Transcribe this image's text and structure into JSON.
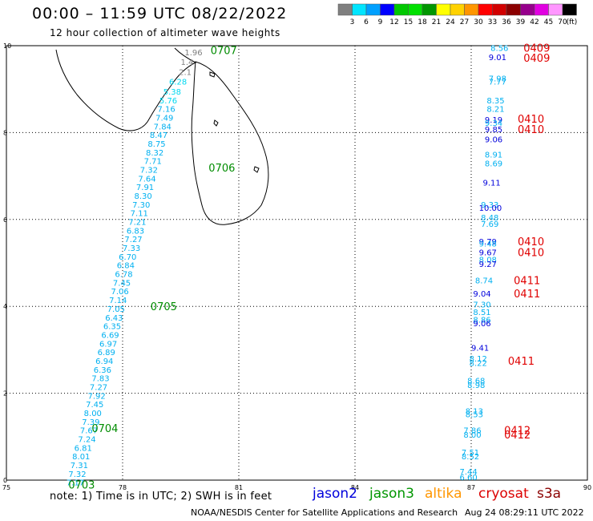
{
  "header": {
    "title": "00:00 – 11:59 UTC 08/22/2022",
    "subtitle": "12 hour collection of altimeter wave heights"
  },
  "legend": {
    "unit": "(ft)",
    "bins": [
      {
        "label": "3",
        "color": "#7f7f7f"
      },
      {
        "label": "6",
        "color": "#00e5ff"
      },
      {
        "label": "9",
        "color": "#00a0ff"
      },
      {
        "label": "12",
        "color": "#0000ff"
      },
      {
        "label": "15",
        "color": "#00c800"
      },
      {
        "label": "18",
        "color": "#00e000"
      },
      {
        "label": "21",
        "color": "#009600"
      },
      {
        "label": "24",
        "color": "#ffff00"
      },
      {
        "label": "27",
        "color": "#ffd200"
      },
      {
        "label": "30",
        "color": "#ff9600"
      },
      {
        "label": "33",
        "color": "#ff0000"
      },
      {
        "label": "36",
        "color": "#d20000"
      },
      {
        "label": "39",
        "color": "#8b0000"
      },
      {
        "label": "42",
        "color": "#96008c"
      },
      {
        "label": "45",
        "color": "#e100e1"
      },
      {
        "label": "70",
        "color": "#ff96ff"
      },
      {
        "label": "",
        "color": "#000000"
      }
    ]
  },
  "axes": {
    "x_ticks": [
      "75",
      "78",
      "81",
      "84",
      "87",
      "90"
    ],
    "y_ticks": [
      "0",
      "2",
      "4",
      "6",
      "8",
      "10"
    ]
  },
  "track_left": {
    "times": [
      {
        "label": "0707",
        "lon": 80.27,
        "lat": 9.9
      },
      {
        "label": "0706",
        "lon": 80.22,
        "lat": 7.2
      },
      {
        "label": "0705",
        "lon": 78.72,
        "lat": 4.0
      },
      {
        "label": "0704",
        "lon": 77.2,
        "lat": 1.2
      },
      {
        "label": "0703",
        "lon": 76.6,
        "lat": -0.1
      }
    ],
    "values": [
      {
        "v": "1.96",
        "lon": 79.6,
        "lat": 9.85,
        "c": "#7f7f7f"
      },
      {
        "v": "1.4",
        "lon": 79.5,
        "lat": 9.63,
        "c": "#7f7f7f"
      },
      {
        "v": "2.1",
        "lon": 79.45,
        "lat": 9.4,
        "c": "#7f7f7f"
      },
      {
        "v": "6.28",
        "lon": 79.2,
        "lat": 9.18,
        "c": "#00d8f0"
      },
      {
        "v": "5.38",
        "lon": 79.05,
        "lat": 8.95,
        "c": "#00d8f0"
      },
      {
        "v": "5.76",
        "lon": 78.95,
        "lat": 8.75,
        "c": "#00d8f0"
      },
      {
        "v": "7.16",
        "lon": 78.9,
        "lat": 8.55,
        "c": "#00b0f0"
      },
      {
        "v": "7.49",
        "lon": 78.85,
        "lat": 8.35,
        "c": "#00b0f0"
      },
      {
        "v": "7.84",
        "lon": 78.8,
        "lat": 8.15,
        "c": "#00b0f0"
      },
      {
        "v": "8.47",
        "lon": 78.7,
        "lat": 7.95,
        "c": "#00b0f0"
      },
      {
        "v": "8.75",
        "lon": 78.65,
        "lat": 7.75,
        "c": "#00b0f0"
      },
      {
        "v": "8.32",
        "lon": 78.6,
        "lat": 7.55,
        "c": "#00b0f0"
      },
      {
        "v": "7.71",
        "lon": 78.55,
        "lat": 7.35,
        "c": "#00b0f0"
      },
      {
        "v": "7.32",
        "lon": 78.45,
        "lat": 7.15,
        "c": "#00b0f0"
      },
      {
        "v": "7.64",
        "lon": 78.4,
        "lat": 6.95,
        "c": "#00b0f0"
      },
      {
        "v": "7.91",
        "lon": 78.35,
        "lat": 6.75,
        "c": "#00b0f0"
      },
      {
        "v": "8.30",
        "lon": 78.3,
        "lat": 6.55,
        "c": "#00b0f0"
      },
      {
        "v": "7.30",
        "lon": 78.25,
        "lat": 6.35,
        "c": "#00b0f0"
      },
      {
        "v": "7.11",
        "lon": 78.2,
        "lat": 6.15,
        "c": "#00b0f0"
      },
      {
        "v": "7.21",
        "lon": 78.15,
        "lat": 5.95,
        "c": "#00b0f0"
      },
      {
        "v": "6.83",
        "lon": 78.1,
        "lat": 5.75,
        "c": "#00b0f0"
      },
      {
        "v": "7.27",
        "lon": 78.05,
        "lat": 5.55,
        "c": "#00b0f0"
      },
      {
        "v": "7.33",
        "lon": 78.0,
        "lat": 5.35,
        "c": "#00b0f0"
      },
      {
        "v": "6.70",
        "lon": 77.9,
        "lat": 5.15,
        "c": "#00b0f0"
      },
      {
        "v": "6.84",
        "lon": 77.85,
        "lat": 4.95,
        "c": "#00b0f0"
      },
      {
        "v": "6.78",
        "lon": 77.8,
        "lat": 4.75,
        "c": "#00b0f0"
      },
      {
        "v": "7.45",
        "lon": 77.75,
        "lat": 4.55,
        "c": "#00b0f0"
      },
      {
        "v": "7.06",
        "lon": 77.7,
        "lat": 4.35,
        "c": "#00b0f0"
      },
      {
        "v": "7.14",
        "lon": 77.65,
        "lat": 4.15,
        "c": "#00b0f0"
      },
      {
        "v": "7.05",
        "lon": 77.6,
        "lat": 3.95,
        "c": "#00b0f0"
      },
      {
        "v": "6.43",
        "lon": 77.55,
        "lat": 3.75,
        "c": "#00b0f0"
      },
      {
        "v": "6.35",
        "lon": 77.5,
        "lat": 3.55,
        "c": "#00b0f0"
      },
      {
        "v": "6.69",
        "lon": 77.45,
        "lat": 3.35,
        "c": "#00b0f0"
      },
      {
        "v": "6.97",
        "lon": 77.4,
        "lat": 3.15,
        "c": "#00b0f0"
      },
      {
        "v": "6.89",
        "lon": 77.35,
        "lat": 2.95,
        "c": "#00b0f0"
      },
      {
        "v": "6.94",
        "lon": 77.3,
        "lat": 2.75,
        "c": "#00b0f0"
      },
      {
        "v": "6.36",
        "lon": 77.25,
        "lat": 2.55,
        "c": "#00b0f0"
      },
      {
        "v": "7.83",
        "lon": 77.2,
        "lat": 2.35,
        "c": "#00b0f0"
      },
      {
        "v": "7.27",
        "lon": 77.15,
        "lat": 2.15,
        "c": "#00b0f0"
      },
      {
        "v": "7.92",
        "lon": 77.1,
        "lat": 1.95,
        "c": "#00b0f0"
      },
      {
        "v": "7.45",
        "lon": 77.05,
        "lat": 1.75,
        "c": "#00b0f0"
      },
      {
        "v": "8.00",
        "lon": 77.0,
        "lat": 1.55,
        "c": "#00b0f0"
      },
      {
        "v": "7.39",
        "lon": 76.95,
        "lat": 1.35,
        "c": "#00b0f0"
      },
      {
        "v": "7.67",
        "lon": 76.9,
        "lat": 1.15,
        "c": "#00b0f0"
      },
      {
        "v": "7.24",
        "lon": 76.85,
        "lat": 0.95,
        "c": "#00b0f0"
      },
      {
        "v": "6.81",
        "lon": 76.75,
        "lat": 0.75,
        "c": "#00b0f0"
      },
      {
        "v": "8.01",
        "lon": 76.7,
        "lat": 0.55,
        "c": "#00b0f0"
      },
      {
        "v": "7.31",
        "lon": 76.65,
        "lat": 0.35,
        "c": "#00b0f0"
      },
      {
        "v": "7.32",
        "lon": 76.6,
        "lat": 0.15,
        "c": "#00b0f0"
      },
      {
        "v": "7.17",
        "lon": 76.55,
        "lat": -0.05,
        "c": "#00b0f0"
      }
    ]
  },
  "track_right": {
    "times": [
      {
        "label": "0409",
        "lon": 88.35,
        "lat": 9.95
      },
      {
        "label": "0409",
        "lon": 88.35,
        "lat": 9.72
      },
      {
        "label": "0410",
        "lon": 88.2,
        "lat": 8.32
      },
      {
        "label": "0410",
        "lon": 88.2,
        "lat": 8.08
      },
      {
        "label": "0410",
        "lon": 88.2,
        "lat": 5.5
      },
      {
        "label": "0410",
        "lon": 88.2,
        "lat": 5.25
      },
      {
        "label": "0411",
        "lon": 88.1,
        "lat": 4.6
      },
      {
        "label": "0411",
        "lon": 88.1,
        "lat": 4.3
      },
      {
        "label": "0411",
        "lon": 87.95,
        "lat": 2.75
      },
      {
        "label": "0412",
        "lon": 87.85,
        "lat": 1.15
      },
      {
        "label": "0412",
        "lon": 87.85,
        "lat": 1.05
      }
    ],
    "values": [
      {
        "v": "8.56",
        "lon": 87.5,
        "lat": 9.95,
        "c": "#00b0f0"
      },
      {
        "v": "9.01",
        "lon": 87.45,
        "lat": 9.74,
        "c": "#0000dc"
      },
      {
        "v": "7.98",
        "lon": 87.45,
        "lat": 9.25,
        "c": "#00b0f0"
      },
      {
        "v": "7.77",
        "lon": 87.45,
        "lat": 9.18,
        "c": "#00b0f0"
      },
      {
        "v": "8.35",
        "lon": 87.4,
        "lat": 8.75,
        "c": "#00b0f0"
      },
      {
        "v": "8.21",
        "lon": 87.4,
        "lat": 8.55,
        "c": "#00b0f0"
      },
      {
        "v": "9.19",
        "lon": 87.35,
        "lat": 8.3,
        "c": "#0000dc"
      },
      {
        "v": "9.34",
        "lon": 87.35,
        "lat": 8.23,
        "c": "#00b0f0"
      },
      {
        "v": "9.85",
        "lon": 87.35,
        "lat": 8.08,
        "c": "#0000dc"
      },
      {
        "v": "9.06",
        "lon": 87.35,
        "lat": 7.85,
        "c": "#0000dc"
      },
      {
        "v": "8.91",
        "lon": 87.35,
        "lat": 7.5,
        "c": "#00b0f0"
      },
      {
        "v": "8.69",
        "lon": 87.35,
        "lat": 7.3,
        "c": "#00b0f0"
      },
      {
        "v": "9.11",
        "lon": 87.3,
        "lat": 6.85,
        "c": "#0000dc"
      },
      {
        "v": "9.33",
        "lon": 87.25,
        "lat": 6.35,
        "c": "#00b0f0"
      },
      {
        "v": "10.00",
        "lon": 87.2,
        "lat": 6.27,
        "c": "#0000dc"
      },
      {
        "v": "8.48",
        "lon": 87.25,
        "lat": 6.05,
        "c": "#00b0f0"
      },
      {
        "v": "7.69",
        "lon": 87.25,
        "lat": 5.9,
        "c": "#00b0f0"
      },
      {
        "v": "9.79",
        "lon": 87.2,
        "lat": 5.5,
        "c": "#0000dc"
      },
      {
        "v": "9.48",
        "lon": 87.2,
        "lat": 5.45,
        "c": "#00b0f0"
      },
      {
        "v": "9.67",
        "lon": 87.2,
        "lat": 5.25,
        "c": "#0000dc"
      },
      {
        "v": "8.08",
        "lon": 87.2,
        "lat": 5.08,
        "c": "#00b0f0"
      },
      {
        "v": "9.27",
        "lon": 87.2,
        "lat": 4.98,
        "c": "#0000dc"
      },
      {
        "v": "8.74",
        "lon": 87.1,
        "lat": 4.6,
        "c": "#00b0f0"
      },
      {
        "v": "9.04",
        "lon": 87.05,
        "lat": 4.3,
        "c": "#0000dc"
      },
      {
        "v": "7.30",
        "lon": 87.05,
        "lat": 4.05,
        "c": "#00b0f0"
      },
      {
        "v": "8.51",
        "lon": 87.05,
        "lat": 3.87,
        "c": "#00b0f0"
      },
      {
        "v": "8.86",
        "lon": 87.05,
        "lat": 3.7,
        "c": "#00b0f0"
      },
      {
        "v": "9.06",
        "lon": 87.05,
        "lat": 3.62,
        "c": "#0000dc"
      },
      {
        "v": "9.41",
        "lon": 87.0,
        "lat": 3.05,
        "c": "#0000dc"
      },
      {
        "v": "8.12",
        "lon": 86.95,
        "lat": 2.8,
        "c": "#00b0f0"
      },
      {
        "v": "8.22",
        "lon": 86.95,
        "lat": 2.7,
        "c": "#00b0f0"
      },
      {
        "v": "8.68",
        "lon": 86.9,
        "lat": 2.3,
        "c": "#00b0f0"
      },
      {
        "v": "8.98",
        "lon": 86.9,
        "lat": 2.2,
        "c": "#00b0f0"
      },
      {
        "v": "8.13",
        "lon": 86.85,
        "lat": 1.6,
        "c": "#00b0f0"
      },
      {
        "v": "8.53",
        "lon": 86.85,
        "lat": 1.52,
        "c": "#00b0f0"
      },
      {
        "v": "7.86",
        "lon": 86.8,
        "lat": 1.15,
        "c": "#00b0f0"
      },
      {
        "v": "8.00",
        "lon": 86.8,
        "lat": 1.05,
        "c": "#00b0f0"
      },
      {
        "v": "7.51",
        "lon": 86.75,
        "lat": 0.65,
        "c": "#00b0f0"
      },
      {
        "v": "8.52",
        "lon": 86.75,
        "lat": 0.55,
        "c": "#00b0f0"
      },
      {
        "v": "7.44",
        "lon": 86.7,
        "lat": 0.2,
        "c": "#00b0f0"
      },
      {
        "v": "6.60",
        "lon": 86.7,
        "lat": 0.07,
        "c": "#00b0f0"
      }
    ]
  },
  "footer": {
    "note": "note:  1) Time is in UTC; 2) SWH is in feet",
    "satellites": [
      {
        "name": "jason2",
        "color": "#0000dc"
      },
      {
        "name": "jason3",
        "color": "#009600"
      },
      {
        "name": "altika",
        "color": "#ff9600"
      },
      {
        "name": "cryosat",
        "color": "#dc0000"
      },
      {
        "name": "s3a",
        "color": "#8b0000"
      }
    ],
    "credit": "NOAA/NESDIS Center for Satellite Applications and Research",
    "timestamp": "Aug 24 08:29:11 UTC 2022"
  }
}
